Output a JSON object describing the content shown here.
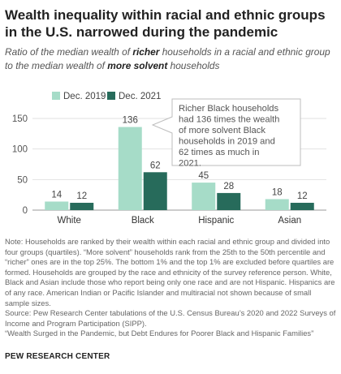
{
  "title": "Wealth inequality within racial and ethnic groups in the U.S. narrowed during the pandemic",
  "subtitle": {
    "part1": "Ratio of the median wealth of ",
    "bold1": "richer",
    "part2": " households in a racial and ethnic group to the median wealth of ",
    "bold2": "more solvent",
    "part3": " households"
  },
  "chart_data": {
    "type": "bar",
    "categories": [
      "White",
      "Black",
      "Hispanic",
      "Asian"
    ],
    "series": [
      {
        "name": "Dec. 2019",
        "values": [
          14,
          136,
          45,
          18
        ],
        "color": "#a6dcc8"
      },
      {
        "name": "Dec. 2021",
        "values": [
          12,
          62,
          28,
          12
        ],
        "color": "#276b5b"
      }
    ],
    "ylim": [
      0,
      150
    ],
    "yticks": [
      0,
      50,
      100,
      150
    ],
    "grid": true,
    "legend_position": "top-left",
    "annotation": "Richer Black households had 136 times the wealth of more solvent Black households in 2019 and 62 times as much in 2021."
  },
  "notes": [
    "Note: Households are ranked by their wealth within each racial and ethnic group and divided into four groups (quartiles). “More solvent” households rank from the 25th to the 50th percentile and “richer” ones are in the top 25%. The bottom 1% and the top 1% are excluded before quartiles are formed. Households are grouped by the race and ethnicity of the survey reference person. White, Black and Asian include those who report being only one race and are not Hispanic. Hispanics are of any race. American Indian or Pacific Islander and multiracial not shown because of small sample sizes.",
    "Source: Pew Research Center tabulations of the U.S. Census Bureau’s 2020 and 2022 Surveys of Income and Program Participation (SIPP).",
    "“Wealth Surged in the Pandemic, but Debt Endures for Poorer Black and Hispanic Families”"
  ],
  "footer": "PEW RESEARCH CENTER"
}
